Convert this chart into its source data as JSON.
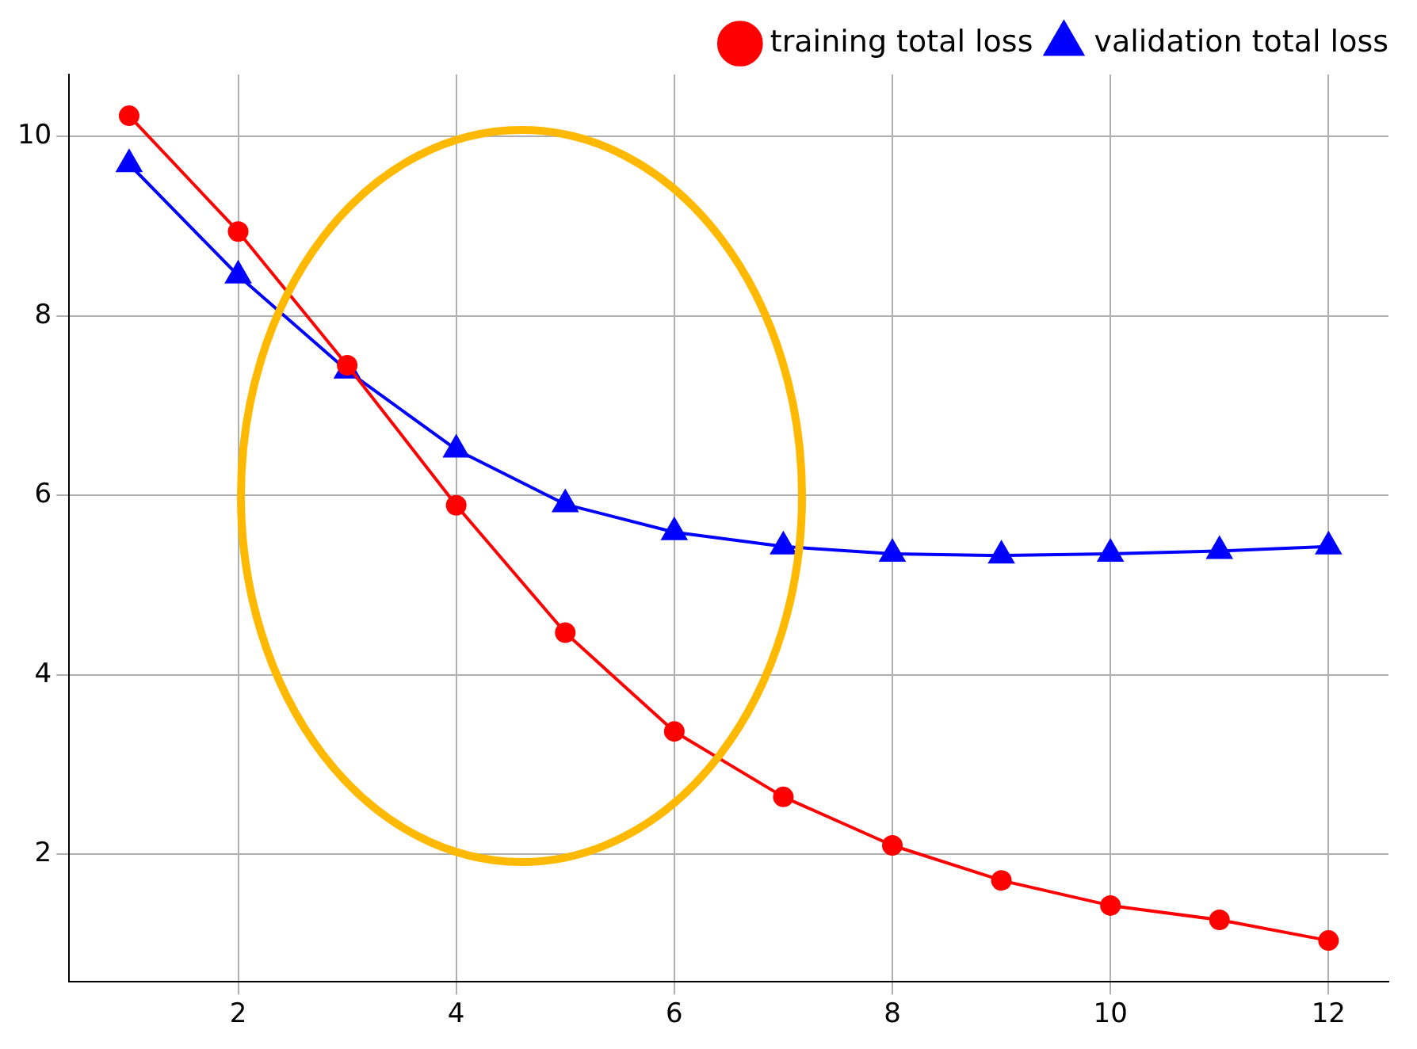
{
  "chart_data": {
    "type": "line",
    "x": [
      1,
      2,
      3,
      4,
      5,
      6,
      7,
      8,
      9,
      10,
      11,
      12
    ],
    "series": [
      {
        "name": "training total loss",
        "color": "#ff0000",
        "marker": "circle",
        "values": [
          10.23,
          8.94,
          7.45,
          5.89,
          4.47,
          3.37,
          2.64,
          2.1,
          1.71,
          1.43,
          1.27,
          1.04
        ]
      },
      {
        "name": "validation total loss",
        "color": "#0000ff",
        "marker": "triangle",
        "values": [
          9.69,
          8.45,
          7.39,
          6.51,
          5.9,
          5.59,
          5.43,
          5.35,
          5.33,
          5.35,
          5.38,
          5.43
        ]
      }
    ],
    "xlim": [
      0.45,
      12.55
    ],
    "xticks": [
      2,
      4,
      6,
      8,
      10,
      12
    ],
    "ylim": [
      0.58,
      10.69
    ],
    "yticks": [
      2,
      4,
      6,
      8,
      10
    ],
    "grid": true,
    "legend": "top right",
    "line_style": "solid"
  }
}
